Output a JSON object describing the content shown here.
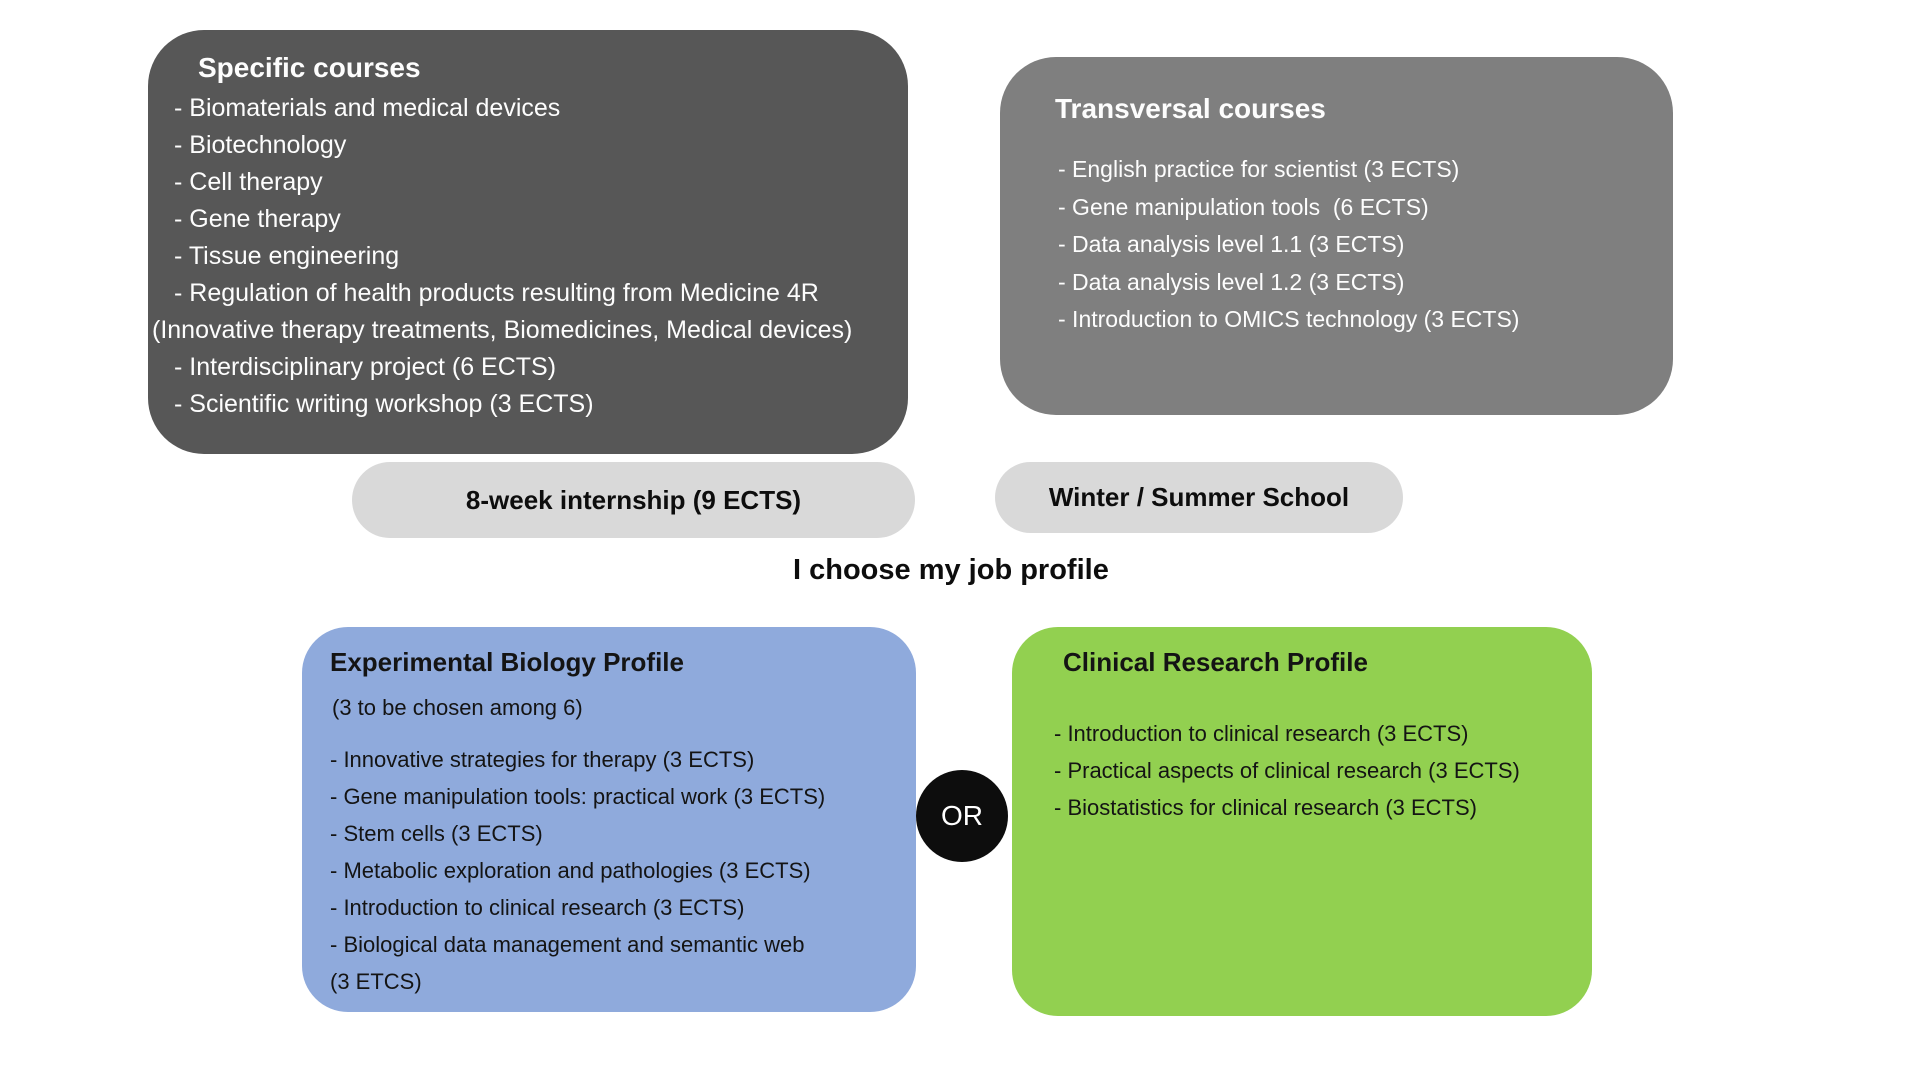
{
  "heading": "I choose my job profile",
  "or_label": "OR",
  "colors": {
    "specific_box": "#575757",
    "transversal_box": "#7f7f7f",
    "pill": "#d9d9d9",
    "experimental_box": "#8faadc",
    "clinical_box": "#92d050",
    "or_circle": "#0d0d0d",
    "light_text": "#ffffff",
    "dark_text": "#141414"
  },
  "specific_courses": {
    "title": "Specific courses",
    "items": [
      {
        "text": "- Biomaterials and medical devices"
      },
      {
        "text": "- Biotechnology"
      },
      {
        "text": "- Cell therapy"
      },
      {
        "text": "- Gene therapy"
      },
      {
        "text": "- Tissue engineering"
      },
      {
        "text": "- Regulation of health products resulting from Medicine 4R"
      },
      {
        "text": "(Innovative therapy treatments, Biomedicines, Medical devices)",
        "cont": true
      },
      {
        "text": "- Interdisciplinary project (6 ECTS)"
      },
      {
        "text": "- Scientific writing workshop (3 ECTS)"
      }
    ]
  },
  "transversal_courses": {
    "title": "Transversal courses",
    "items": [
      {
        "text": "- English practice for scientist (3 ECTS)"
      },
      {
        "text": "- Gene manipulation tools  (6 ECTS)"
      },
      {
        "text": "- Data analysis level 1.1 (3 ECTS)"
      },
      {
        "text": "- Data analysis level 1.2 (3 ECTS)"
      },
      {
        "text": "- Introduction to OMICS technology (3 ECTS)"
      }
    ]
  },
  "internship_pill": {
    "label": "8-week internship (9 ECTS)"
  },
  "school_pill": {
    "label": "Winter / Summer School"
  },
  "experimental_profile": {
    "title": "Experimental Biology Profile",
    "subtitle": "(3 to be chosen among 6)",
    "items": [
      {
        "text": "- Innovative strategies for therapy (3 ECTS)"
      },
      {
        "text": "- Gene manipulation tools: practical work (3 ECTS)"
      },
      {
        "text": "- Stem cells (3 ECTS)"
      },
      {
        "text": "- Metabolic exploration and pathologies (3 ECTS)"
      },
      {
        "text": "- Introduction to clinical research (3 ECTS)"
      },
      {
        "text": "- Biological data management and semantic web"
      },
      {
        "text": "(3 ETCS)",
        "cont": true
      }
    ]
  },
  "clinical_profile": {
    "title": "Clinical Research Profile",
    "items": [
      {
        "text": "- Introduction to clinical research (3 ECTS)"
      },
      {
        "text": "- Practical aspects of clinical research (3 ECTS)"
      },
      {
        "text": "- Biostatistics for clinical research (3 ECTS)"
      }
    ]
  }
}
